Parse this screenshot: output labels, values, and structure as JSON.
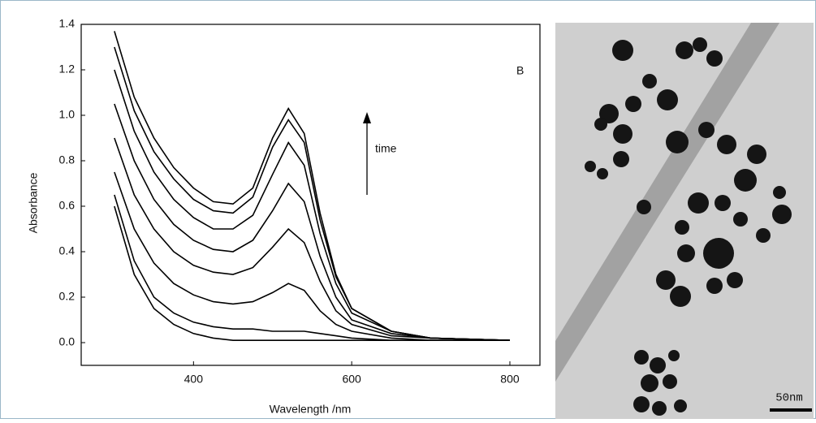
{
  "chart_data": {
    "type": "line",
    "x_label": "Wavelength  /nm",
    "y_label": "Absorbance",
    "annotations": [
      "B",
      "time"
    ],
    "x": [
      300,
      325,
      350,
      375,
      400,
      425,
      450,
      475,
      500,
      520,
      540,
      560,
      580,
      600,
      650,
      700,
      800
    ],
    "series": [
      {
        "color": "#000000",
        "values": [
          0.6,
          0.3,
          0.15,
          0.08,
          0.04,
          0.02,
          0.01,
          0.01,
          0.01,
          0.01,
          0.01,
          0.01,
          0.01,
          0.01,
          0.01,
          0.01,
          0.01
        ]
      },
      {
        "color": "#000000",
        "values": [
          0.65,
          0.36,
          0.2,
          0.13,
          0.09,
          0.07,
          0.06,
          0.06,
          0.05,
          0.05,
          0.05,
          0.04,
          0.03,
          0.02,
          0.01,
          0.01,
          0.01
        ]
      },
      {
        "color": "#000000",
        "values": [
          0.75,
          0.5,
          0.35,
          0.26,
          0.21,
          0.18,
          0.17,
          0.18,
          0.22,
          0.26,
          0.23,
          0.14,
          0.08,
          0.05,
          0.02,
          0.01,
          0.01
        ]
      },
      {
        "color": "#000000",
        "values": [
          0.9,
          0.65,
          0.5,
          0.4,
          0.34,
          0.31,
          0.3,
          0.33,
          0.42,
          0.5,
          0.44,
          0.27,
          0.14,
          0.08,
          0.03,
          0.02,
          0.01
        ]
      },
      {
        "color": "#000000",
        "values": [
          1.05,
          0.8,
          0.63,
          0.52,
          0.45,
          0.41,
          0.4,
          0.45,
          0.58,
          0.7,
          0.62,
          0.38,
          0.2,
          0.1,
          0.04,
          0.02,
          0.01
        ]
      },
      {
        "color": "#000000",
        "values": [
          1.2,
          0.93,
          0.75,
          0.63,
          0.55,
          0.5,
          0.5,
          0.56,
          0.74,
          0.88,
          0.78,
          0.48,
          0.26,
          0.13,
          0.05,
          0.02,
          0.01
        ]
      },
      {
        "color": "#000000",
        "values": [
          1.3,
          1.02,
          0.84,
          0.72,
          0.63,
          0.58,
          0.57,
          0.64,
          0.86,
          0.98,
          0.88,
          0.54,
          0.29,
          0.15,
          0.05,
          0.02,
          0.01
        ]
      },
      {
        "color": "#000000",
        "values": [
          1.37,
          1.08,
          0.9,
          0.77,
          0.68,
          0.62,
          0.61,
          0.68,
          0.9,
          1.03,
          0.92,
          0.57,
          0.3,
          0.15,
          0.05,
          0.02,
          0.01
        ]
      }
    ],
    "xlim": [
      258,
      838
    ],
    "ylim": [
      -0.1,
      1.4
    ],
    "xticks": [
      400,
      600,
      800
    ],
    "yticks": [
      {
        "value": 0,
        "label": "0.0"
      },
      0.2,
      0.4,
      0.6,
      0.8,
      {
        "value": 1,
        "label": "1.0"
      },
      1.2,
      1.4
    ]
  },
  "image": {
    "scale_bar": "50nm"
  }
}
